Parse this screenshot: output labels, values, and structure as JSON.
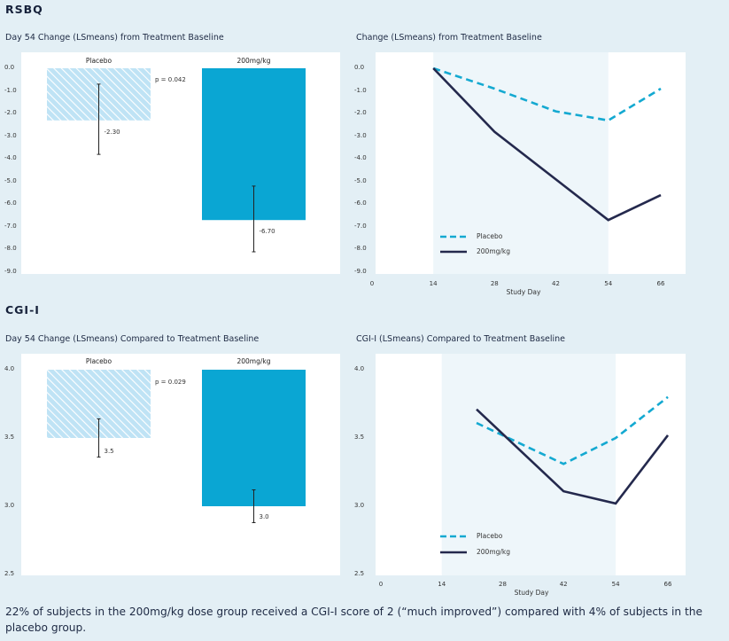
{
  "sections": {
    "rsbq": "RSBQ",
    "cgi": "CGI-I"
  },
  "footer": "22% of subjects in the 200mg/kg dose group received a CGI-I score of 2 (“much improved”) compared with 4% of subjects in the placebo group.",
  "colors": {
    "placebo": "#bfe3f5",
    "placebo_stripe": "#8cc8e8",
    "dose": "#0aa6d3",
    "placebo_line": "#14a9d1",
    "dose_line": "#24294d",
    "shade": "#eef6fa"
  },
  "chart_data": [
    {
      "id": "rsbq_bar",
      "type": "bar",
      "title": "Day 54 Change (LSmeans) from Treatment Baseline",
      "categories": [
        "Placebo",
        "200mg/kg"
      ],
      "values": [
        -2.3,
        -6.7
      ],
      "value_labels": [
        "-2.30",
        "-6.70"
      ],
      "errors": [
        [
          -0.7,
          -3.8
        ],
        [
          -5.2,
          -8.1
        ]
      ],
      "ylim": [
        -9.0,
        0.0
      ],
      "yticks": [
        "0.0",
        "-1.0",
        "-2.0",
        "-3.0",
        "-4.0",
        "-5.0",
        "-6.0",
        "-7.0",
        "-8.0",
        "-9.0"
      ],
      "pvalue": "p = 0.042"
    },
    {
      "id": "rsbq_line",
      "type": "line",
      "title": "Change (LSmeans) from Treatment Baseline",
      "xlabel": "Study Day",
      "xticks": [
        "0",
        "14",
        "28",
        "42",
        "54",
        "66"
      ],
      "xlim": [
        0,
        66
      ],
      "ylim": [
        -9.0,
        0.0
      ],
      "yticks": [
        "0.0",
        "-1.0",
        "-2.0",
        "-3.0",
        "-4.0",
        "-5.0",
        "-6.0",
        "-7.0",
        "-8.0",
        "-9.0"
      ],
      "shade_range": [
        14,
        54
      ],
      "series": [
        {
          "name": "Placebo",
          "style": "dashed",
          "x": [
            14,
            28,
            42,
            54,
            66
          ],
          "y": [
            0.0,
            -0.9,
            -1.9,
            -2.3,
            -0.9
          ]
        },
        {
          "name": "200mg/kg",
          "style": "solid",
          "x": [
            14,
            28,
            54,
            66
          ],
          "y": [
            0.0,
            -2.8,
            -6.7,
            -5.6
          ]
        }
      ]
    },
    {
      "id": "cgi_bar",
      "type": "bar",
      "title": "Day 54 Change (LSmeans) Compared to Treatment Baseline",
      "categories": [
        "Placebo",
        "200mg/kg"
      ],
      "values": [
        3.5,
        3.0
      ],
      "value_labels": [
        "3.5",
        "3.0"
      ],
      "errors": [
        [
          3.64,
          3.36
        ],
        [
          3.12,
          2.88
        ]
      ],
      "ylim": [
        2.5,
        4.0
      ],
      "yticks": [
        "4.0",
        "3.5",
        "3.0",
        "2.5"
      ],
      "pvalue": "p = 0.029"
    },
    {
      "id": "cgi_line",
      "type": "line",
      "title": "CGI-I (LSmeans) Compared to Treatment Baseline",
      "xlabel": "Study Day",
      "xticks": [
        "0",
        "14",
        "28",
        "42",
        "54",
        "66"
      ],
      "xlim": [
        0,
        66
      ],
      "ylim": [
        2.5,
        4.0
      ],
      "yticks": [
        "4.0",
        "3.5",
        "3.0",
        "2.5"
      ],
      "shade_range": [
        14,
        54
      ],
      "series": [
        {
          "name": "Placebo",
          "style": "dashed",
          "x": [
            22,
            42,
            54,
            66
          ],
          "y": [
            3.61,
            3.31,
            3.5,
            3.8
          ]
        },
        {
          "name": "200mg/kg",
          "style": "solid",
          "x": [
            22,
            42,
            54,
            66
          ],
          "y": [
            3.71,
            3.11,
            3.02,
            3.52
          ]
        }
      ]
    }
  ]
}
